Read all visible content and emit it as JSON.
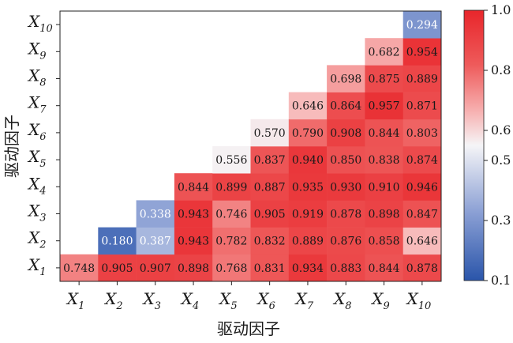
{
  "chart_data": {
    "type": "heatmap",
    "categories": [
      {
        "base": "X",
        "sub": "1"
      },
      {
        "base": "X",
        "sub": "2"
      },
      {
        "base": "X",
        "sub": "3"
      },
      {
        "base": "X",
        "sub": "4"
      },
      {
        "base": "X",
        "sub": "5"
      },
      {
        "base": "X",
        "sub": "6"
      },
      {
        "base": "X",
        "sub": "7"
      },
      {
        "base": "X",
        "sub": "8"
      },
      {
        "base": "X",
        "sub": "9"
      },
      {
        "base": "X",
        "sub": "10"
      }
    ],
    "xlabel": "驱动因子",
    "ylabel": "驱动因子",
    "matrix": [
      [
        0.748,
        0.905,
        0.907,
        0.898,
        0.768,
        0.831,
        0.934,
        0.883,
        0.844,
        0.878
      ],
      [
        null,
        0.18,
        0.387,
        0.943,
        0.782,
        0.832,
        0.889,
        0.876,
        0.858,
        0.646
      ],
      [
        null,
        null,
        0.338,
        0.943,
        0.746,
        0.905,
        0.919,
        0.878,
        0.898,
        0.847
      ],
      [
        null,
        null,
        null,
        0.844,
        0.899,
        0.887,
        0.935,
        0.93,
        0.91,
        0.946
      ],
      [
        null,
        null,
        null,
        null,
        0.556,
        0.837,
        0.94,
        0.85,
        0.838,
        0.874
      ],
      [
        null,
        null,
        null,
        null,
        null,
        0.57,
        0.79,
        0.908,
        0.844,
        0.803
      ],
      [
        null,
        null,
        null,
        null,
        null,
        null,
        0.646,
        0.864,
        0.957,
        0.871
      ],
      [
        null,
        null,
        null,
        null,
        null,
        null,
        null,
        0.698,
        0.875,
        0.889
      ],
      [
        null,
        null,
        null,
        null,
        null,
        null,
        null,
        null,
        0.682,
        0.954
      ],
      [
        null,
        null,
        null,
        null,
        null,
        null,
        null,
        null,
        null,
        0.294
      ]
    ],
    "matrix_note": "",
    "colorbar": {
      "min": 0.1,
      "max": 1.0,
      "center": 0.55,
      "ticks": [
        "1.0",
        "0.8",
        "0.6",
        "0.5",
        "0.3",
        "0.1"
      ],
      "tick_values": [
        1.0,
        0.8,
        0.6,
        0.5,
        0.3,
        0.1
      ],
      "colormap": "bwr",
      "low_color": "#2a55aa",
      "mid_color": "#f5f5f7",
      "high_color": "#e8262b"
    }
  }
}
